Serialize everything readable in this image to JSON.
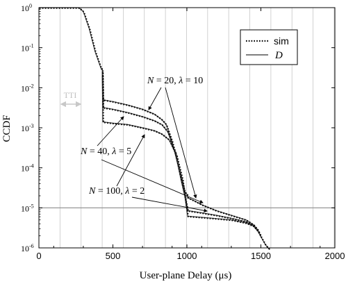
{
  "chart_data": {
    "type": "line",
    "xlabel": "User-plane Delay (μs)",
    "ylabel": "CCDF",
    "xlim": [
      0,
      2000
    ],
    "ylim_exp": [
      -6,
      0
    ],
    "y_scale": "log",
    "x_ticks": [
      0,
      500,
      1000,
      1500,
      2000
    ],
    "x_tick_labels": [
      "0",
      "500",
      "1000",
      "1500",
      "2000"
    ],
    "y_tick_exps": [
      0,
      -1,
      -2,
      -3,
      -4,
      -5,
      -6
    ],
    "y_tick_labels": [
      {
        "base": "10",
        "exp": "0"
      },
      {
        "base": "10",
        "exp": "-1"
      },
      {
        "base": "10",
        "exp": "-2"
      },
      {
        "base": "10",
        "exp": "-3"
      },
      {
        "base": "10",
        "exp": "-4"
      },
      {
        "base": "10",
        "exp": "-5"
      },
      {
        "base": "10",
        "exp": "-6"
      }
    ],
    "grid": "vertical every TTI",
    "tti_label": "TTI",
    "reference_level": 1e-05,
    "legend": {
      "position": "top-right",
      "entries": [
        {
          "label": "sim",
          "style": "dotted"
        },
        {
          "label": "D",
          "style": "solid"
        }
      ]
    },
    "series": [
      {
        "label_n": "N = 20, λ = 10",
        "x": [
          0,
          270,
          300,
          340,
          380,
          420,
          428,
          432,
          500,
          600,
          700,
          780,
          830,
          860,
          900,
          950,
          985,
          1000,
          1005,
          1050,
          1100,
          1200,
          1300,
          1400,
          1450,
          1480,
          1500,
          1530,
          1560
        ],
        "y": [
          1,
          1,
          0.8,
          0.3,
          0.08,
          0.03,
          0.03,
          0.005,
          0.0045,
          0.0037,
          0.0029,
          0.0022,
          0.0016,
          0.0012,
          0.00045,
          8e-05,
          2.5e-05,
          2.2e-05,
          1.8e-05,
          1.5e-05,
          1.2e-05,
          8.5e-06,
          6.5e-06,
          5e-06,
          3.8e-06,
          2.8e-06,
          1.9e-06,
          1.2e-06,
          9e-07
        ]
      },
      {
        "label_n": "N = 40, λ = 5",
        "x": [
          428,
          432,
          500,
          600,
          700,
          780,
          830,
          870,
          920,
          960,
          985,
          1005,
          1100,
          1200,
          1300,
          1400,
          1450,
          1480,
          1500
        ],
        "y": [
          0.025,
          0.0032,
          0.0029,
          0.0024,
          0.0019,
          0.0015,
          0.0012,
          0.0008,
          0.00025,
          5e-05,
          2e-05,
          8.5e-06,
          7.5e-06,
          6.5e-06,
          5.5e-06,
          4.5e-06,
          3.6e-06,
          2.7e-06,
          1.9e-06
        ]
      },
      {
        "label_n": "N = 100, λ = 2",
        "x": [
          428,
          432,
          500,
          600,
          700,
          780,
          830,
          880,
          930,
          970,
          990,
          1005,
          1100,
          1200,
          1300,
          1400,
          1450,
          1480,
          1500
        ],
        "y": [
          0.02,
          0.0014,
          0.0013,
          0.0012,
          0.001,
          0.00085,
          0.0007,
          0.0005,
          0.0002,
          5e-05,
          1.5e-05,
          6.2e-06,
          5.8e-06,
          5.4e-06,
          5e-06,
          4.2e-06,
          3.5e-06,
          2.6e-06,
          1.9e-06
        ]
      }
    ],
    "annotations": [
      {
        "text": "N = 20, λ = 10",
        "n": "N",
        "n_value": " = 20, ",
        "lam": "λ",
        "lam_value": " = 10"
      },
      {
        "text": "N = 40, λ = 5",
        "n": "N",
        "n_value": " = 40, ",
        "lam": "λ",
        "lam_value": " = 5"
      },
      {
        "text": "N = 100, λ = 2",
        "n": "N",
        "n_value": " = 100, ",
        "lam": "λ",
        "lam_value": " = 2"
      }
    ]
  }
}
